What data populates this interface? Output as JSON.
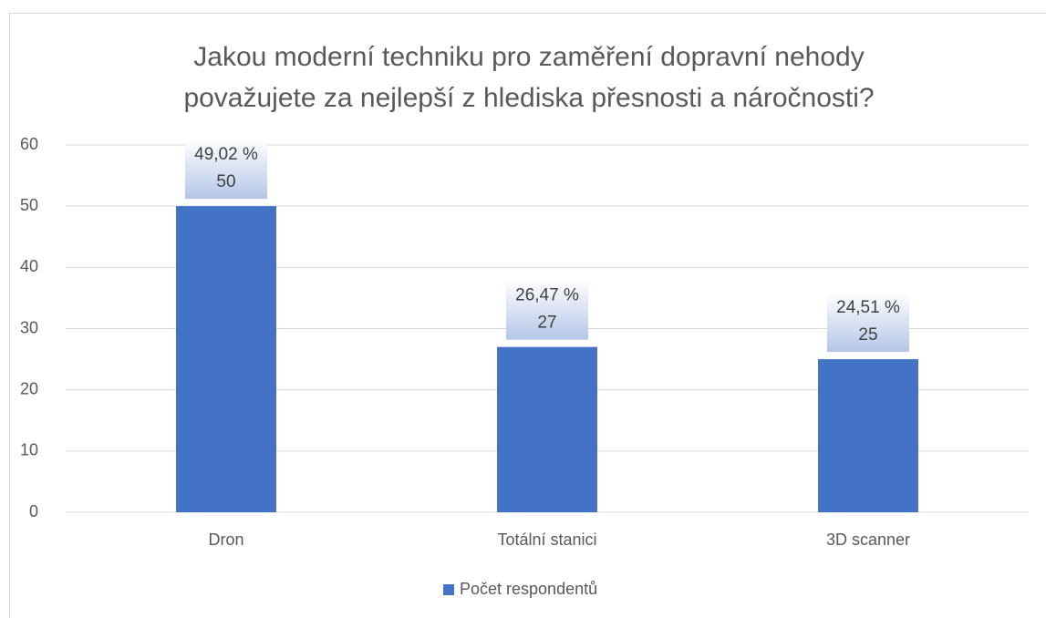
{
  "chart_data": {
    "type": "bar",
    "title": [
      "Jakou moderní techniku pro zaměření dopravní nehody",
      "považujete za nejlepší z hlediska přesnosti a náročnosti?"
    ],
    "categories": [
      "Dron",
      "Totální stanici",
      "3D scanner"
    ],
    "series": [
      {
        "name": "Počet respondentů",
        "color": "#4472c4",
        "values": [
          50,
          27,
          25
        ]
      }
    ],
    "percent_labels": [
      "49,02 %",
      "26,47 %",
      "24,51 %"
    ],
    "ylim": [
      0,
      60
    ],
    "yticks": [
      0,
      10,
      20,
      30,
      40,
      50,
      60
    ],
    "grid": true,
    "legend": "bottom"
  }
}
